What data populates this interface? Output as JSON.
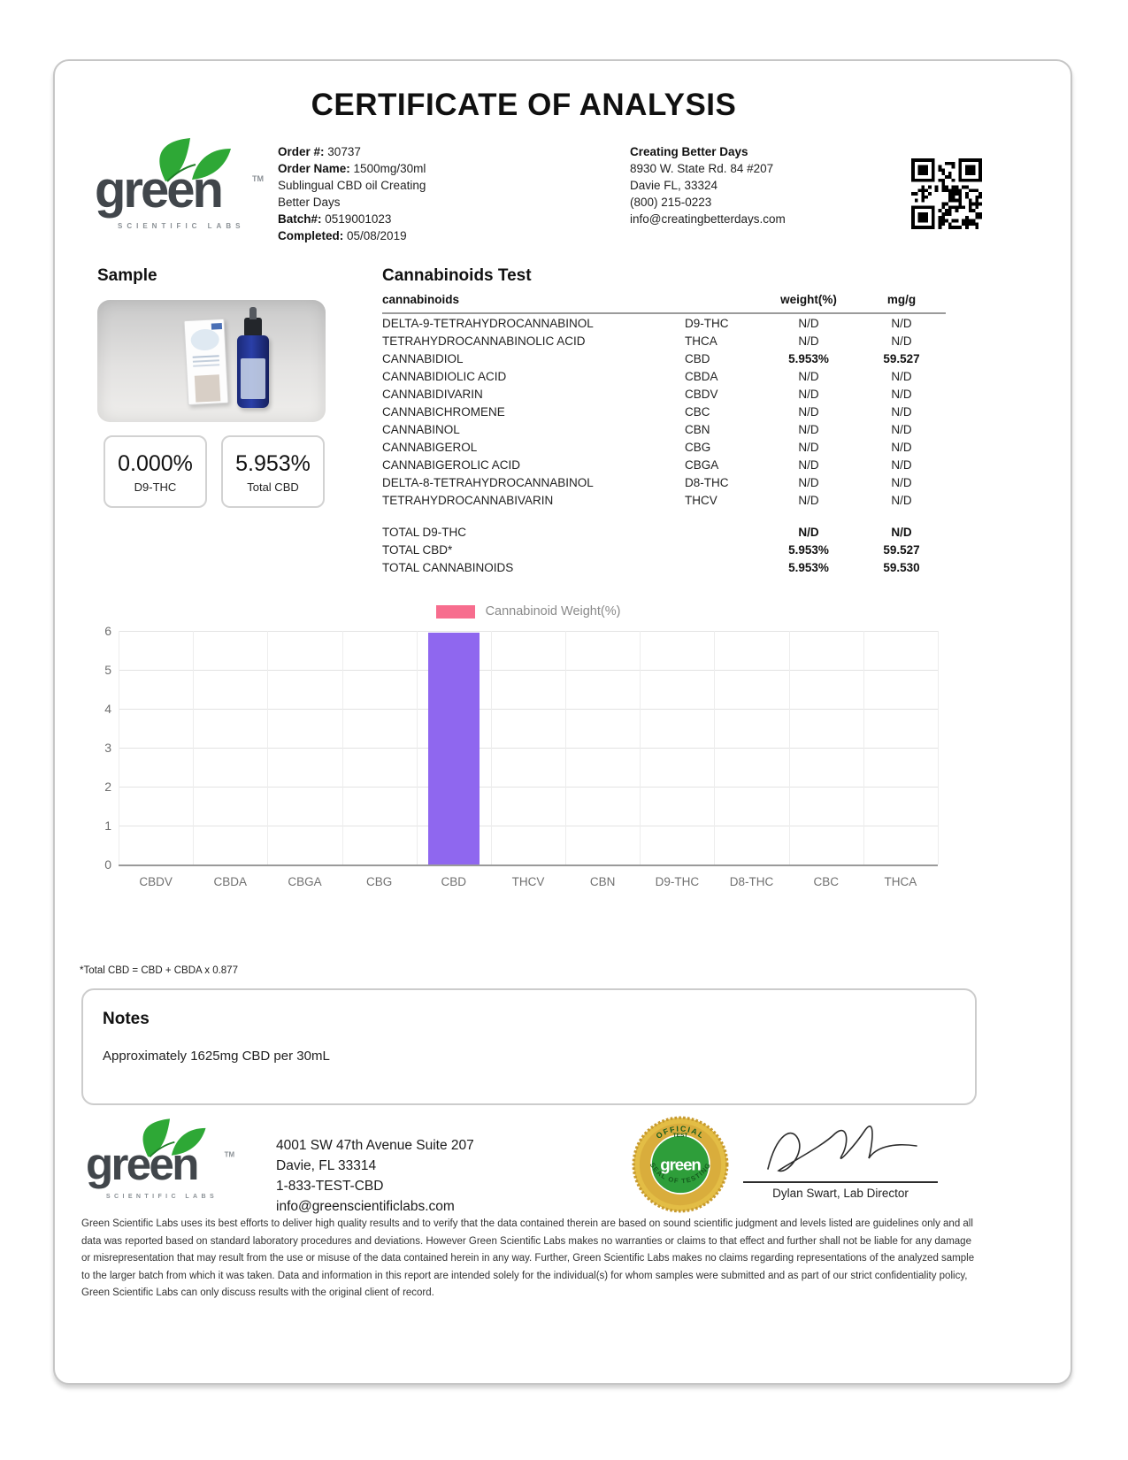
{
  "document_title": "CERTIFICATE OF ANALYSIS",
  "brand": {
    "logo_word": "green",
    "logo_tagline": "SCIENTIFIC LABS",
    "logo_tm": "TM",
    "green": "#2ea836",
    "dark": "#41464b"
  },
  "order_info": {
    "order_label": "Order #:",
    "order_number": "30737",
    "order_name_label": "Order Name:",
    "order_name": "1500mg/30ml Sublingual CBD oil Creating Better Days",
    "batch_label": "Batch#:",
    "batch_number": "0519001023",
    "completed_label": "Completed:",
    "completed_date": "05/08/2019"
  },
  "client": {
    "name": "Creating Better Days",
    "address_line1": "8930 W. State Rd. 84 #207",
    "address_line2": "Davie FL, 33324",
    "phone": "(800) 215-0223",
    "email": "info@creatingbetterdays.com"
  },
  "sample": {
    "heading": "Sample",
    "stat_cards": [
      {
        "value": "0.000%",
        "label": "D9-THC"
      },
      {
        "value": "5.953%",
        "label": "Total CBD"
      }
    ]
  },
  "cannabinoids_test": {
    "heading": "Cannabinoids Test",
    "col_name": "cannabinoids",
    "col_weight": "weight(%)",
    "col_mgg": "mg/g",
    "rows": [
      {
        "name": "DELTA-9-TETRAHYDROCANNABINOL",
        "abbr": "D9-THC",
        "weight": "N/D",
        "mgg": "N/D",
        "bold": false
      },
      {
        "name": "TETRAHYDROCANNABINOLIC ACID",
        "abbr": "THCA",
        "weight": "N/D",
        "mgg": "N/D",
        "bold": false
      },
      {
        "name": "CANNABIDIOL",
        "abbr": "CBD",
        "weight": "5.953%",
        "mgg": "59.527",
        "bold": true
      },
      {
        "name": "CANNABIDIOLIC ACID",
        "abbr": "CBDA",
        "weight": "N/D",
        "mgg": "N/D",
        "bold": false
      },
      {
        "name": "CANNABIDIVARIN",
        "abbr": "CBDV",
        "weight": "N/D",
        "mgg": "N/D",
        "bold": false
      },
      {
        "name": "CANNABICHROMENE",
        "abbr": "CBC",
        "weight": "N/D",
        "mgg": "N/D",
        "bold": false
      },
      {
        "name": "CANNABINOL",
        "abbr": "CBN",
        "weight": "N/D",
        "mgg": "N/D",
        "bold": false
      },
      {
        "name": "CANNABIGEROL",
        "abbr": "CBG",
        "weight": "N/D",
        "mgg": "N/D",
        "bold": false
      },
      {
        "name": "CANNABIGEROLIC ACID",
        "abbr": "CBGA",
        "weight": "N/D",
        "mgg": "N/D",
        "bold": false
      },
      {
        "name": "DELTA-8-TETRAHYDROCANNABINOL",
        "abbr": "D8-THC",
        "weight": "N/D",
        "mgg": "N/D",
        "bold": false
      },
      {
        "name": "TETRAHYDROCANNABIVARIN",
        "abbr": "THCV",
        "weight": "N/D",
        "mgg": "N/D",
        "bold": false
      }
    ],
    "totals": [
      {
        "name": "TOTAL D9-THC",
        "weight": "N/D",
        "mgg": "N/D"
      },
      {
        "name": "TOTAL CBD*",
        "weight": "5.953%",
        "mgg": "59.527"
      },
      {
        "name": "TOTAL CANNABINOIDS",
        "weight": "5.953%",
        "mgg": "59.530"
      }
    ]
  },
  "chart_data": {
    "type": "bar",
    "title": "",
    "legend_label": "Cannabinoid Weight(%)",
    "legend_color": "#f76d8e",
    "legend_position": "top-center",
    "categories": [
      "CBDV",
      "CBDA",
      "CBGA",
      "CBG",
      "CBD",
      "THCV",
      "CBN",
      "D9-THC",
      "D8-THC",
      "CBC",
      "THCA"
    ],
    "values": [
      0,
      0,
      0,
      0,
      5.953,
      0,
      0,
      0,
      0,
      0,
      0
    ],
    "bar_color": "#8f67ef",
    "xlabel": "",
    "ylabel": "",
    "ylim": [
      0,
      6
    ],
    "yticks": [
      0,
      1,
      2,
      3,
      4,
      5,
      6
    ],
    "grid": true
  },
  "footnote": "*Total CBD = CBD + CBDA x 0.877",
  "notes": {
    "heading": "Notes",
    "body": "Approximately 1625mg CBD per 30mL"
  },
  "footer": {
    "address_line1": "4001 SW 47th Avenue Suite 207",
    "address_line2": "Davie, FL 33314",
    "phone": "1-833-TEST-CBD",
    "email": "info@greenscientificlabs.com",
    "seal": {
      "arc_top": "OFFICIAL",
      "line_top": "TEST",
      "center": "green",
      "arc_bottom": "SEAL OF TESTING"
    },
    "signature_name": "Dylan Swart, Lab Director",
    "disclaimer": "Green Scientific Labs uses its best efforts to deliver high quality results and to verify that the data contained therein are based on sound scientific judgment and levels listed are guidelines only and all data was reported based on standard laboratory procedures and deviations. However Green Scientific Labs makes no warranties or claims to that effect and further shall not be liable for any damage or misrepresentation that may result from the use or misuse of the data contained herein in any way. Further, Green Scientific Labs makes no claims regarding representations of the analyzed sample to the larger batch from which it was taken. Data and information in this report are intended solely for the individual(s) for whom samples were submitted and as part of our strict confidentiality policy, Green Scientific Labs can only discuss results with the original client of record."
  }
}
